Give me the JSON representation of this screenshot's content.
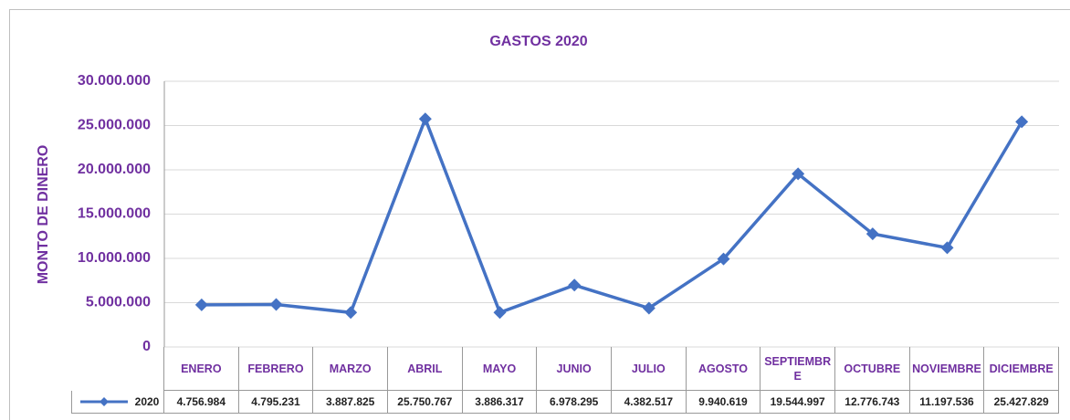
{
  "chart_data": {
    "type": "line",
    "title": "GASTOS 2020",
    "y_label": "MONTO DE DINERO",
    "categories": [
      "ENERO",
      "FEBRERO",
      "MARZO",
      "ABRIL",
      "MAYO",
      "JUNIO",
      "JULIO",
      "AGOSTO",
      "SEPTIEMBRE",
      "OCTUBRE",
      "NOVIEMBRE",
      "DICIEMBRE"
    ],
    "series": [
      {
        "name": "2020",
        "color": "#4472c4",
        "values": [
          4756984,
          4795231,
          3887825,
          25750767,
          3886317,
          6978295,
          4382517,
          9940619,
          19544997,
          12776743,
          11197536,
          25427829
        ],
        "value_labels": [
          "4.756.984",
          "4.795.231",
          "3.887.825",
          "25.750.767",
          "3.886.317",
          "6.978.295",
          "4.382.517",
          "9.940.619",
          "19.544.997",
          "12.776.743",
          "11.197.536",
          "25.427.829"
        ]
      }
    ],
    "ylim": [
      0,
      30000000
    ],
    "yticks": [
      0,
      {
        "value": 5000000,
        "label": "5.000.000"
      },
      {
        "value": 10000000,
        "label": "10.000.000"
      },
      {
        "value": 15000000,
        "label": "15.000.000"
      },
      {
        "value": 20000000,
        "label": "20.000.000"
      },
      {
        "value": 25000000,
        "label": "25.000.000"
      },
      {
        "value": 30000000,
        "label": "30.000.000"
      }
    ],
    "grid": true
  }
}
